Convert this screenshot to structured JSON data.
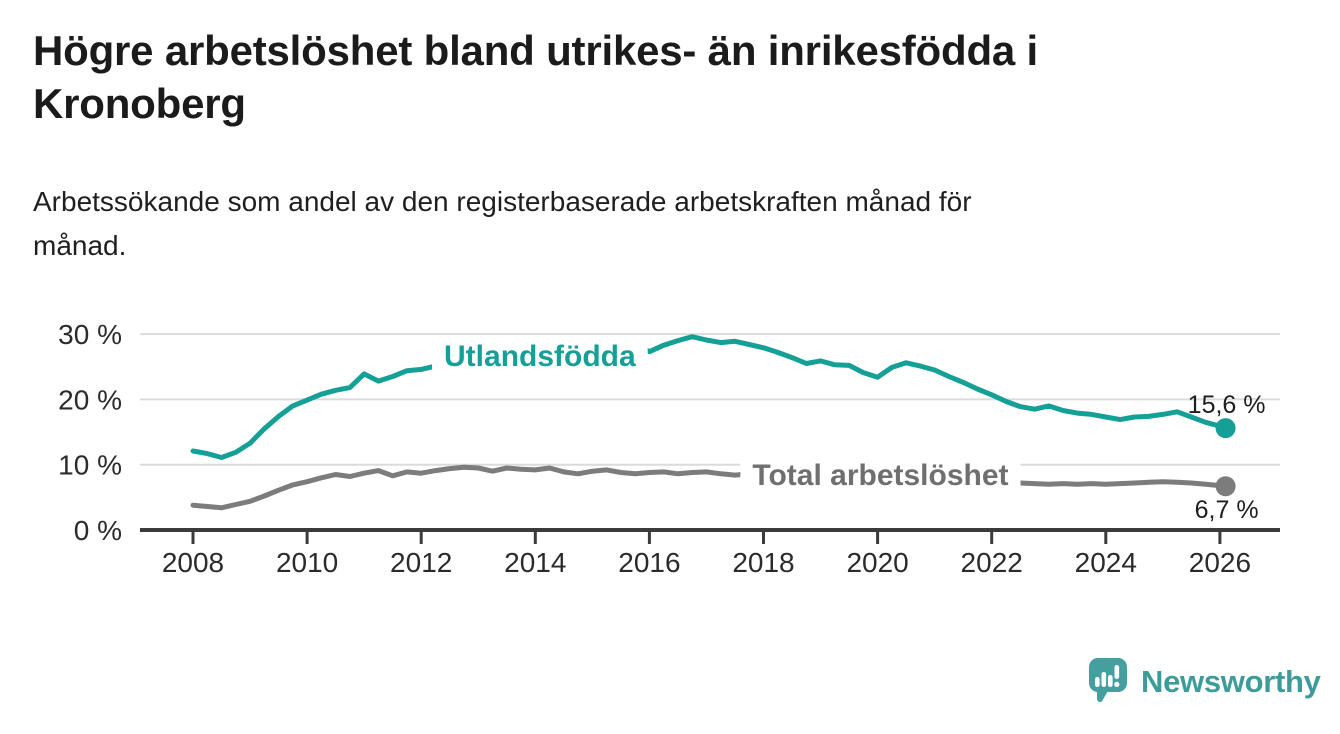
{
  "header": {
    "title_lines": [
      "Högre arbetslöshet bland utrikes- än inrikesfödda i",
      "Kronoberg"
    ],
    "subtitle_lines": [
      "Arbetssökande som andel av den registerbaserade arbetskraften månad för",
      "månad."
    ]
  },
  "branding": {
    "logo_text": "Newsworthy",
    "logo_icon": "speech-bubble-bar-chart-icon",
    "logo_color": "#43A09E"
  },
  "colors": {
    "accent_teal": "#14A096",
    "series_gray": "#7C7C7C",
    "axis": "#3B3B3B",
    "gridline": "#DBDBDB",
    "tick_label": "#2B2B2B",
    "value_label": "#1E1E1E"
  },
  "chart_data": {
    "type": "line",
    "title": "Högre arbetslöshet bland utrikes- än inrikesfödda i Kronoberg",
    "subtitle": "Arbetssökande som andel av den registerbaserade arbetskraften månad för månad.",
    "unit": "%",
    "grid": "horizontal",
    "legend": "inline-labels",
    "xlim": [
      2007.07,
      2027.05
    ],
    "ylim": [
      0,
      31
    ],
    "x_ticks": [
      2008,
      2010,
      2012,
      2014,
      2016,
      2018,
      2020,
      2022,
      2024,
      2026
    ],
    "y_ticks": [
      {
        "value": 0,
        "label": "0 %"
      },
      {
        "value": 10,
        "label": "10 %"
      },
      {
        "value": 20,
        "label": "20 %"
      },
      {
        "value": 30,
        "label": "30 %"
      }
    ],
    "series": [
      {
        "name": "Utlandsfödda",
        "color": "#14A096",
        "x_start": 2008,
        "x_step": 0.25,
        "values": [
          12.1,
          11.7,
          11.1,
          11.9,
          13.3,
          15.5,
          17.4,
          19.0,
          19.9,
          20.8,
          21.4,
          21.8,
          23.9,
          22.8,
          23.5,
          24.4,
          24.6,
          25.1,
          25.4,
          25.6,
          25.9,
          26.2,
          26.4,
          26.7,
          26.9,
          27.2,
          27.4,
          27.7,
          27.9,
          28.1,
          28.3,
          28.5,
          27.3,
          28.3,
          29.0,
          29.6,
          29.1,
          28.7,
          28.9,
          28.4,
          27.9,
          27.2,
          26.4,
          25.5,
          25.9,
          25.3,
          25.2,
          24.1,
          23.4,
          24.9,
          25.6,
          25.1,
          24.5,
          23.5,
          22.6,
          21.6,
          20.7,
          19.7,
          18.9,
          18.5,
          19.0,
          18.3,
          17.9,
          17.7,
          17.3,
          16.9,
          17.3,
          17.4,
          17.7,
          18.1,
          17.3,
          16.5,
          15.9
        ],
        "end_x": 2026.1,
        "end_value": 15.6,
        "end_label": "15,6 %",
        "end_label_position": "above",
        "label_x": 2014.08,
        "label_y": 26.8
      },
      {
        "name": "Total arbetslöshet",
        "color": "#7C7C7C",
        "label_color": "#6F6F6F",
        "x_start": 2008,
        "x_step": 0.25,
        "values": [
          3.8,
          3.6,
          3.4,
          3.9,
          4.4,
          5.2,
          6.1,
          6.9,
          7.4,
          8.0,
          8.5,
          8.2,
          8.7,
          9.1,
          8.3,
          8.9,
          8.7,
          9.1,
          9.4,
          9.6,
          9.5,
          9.0,
          9.5,
          9.3,
          9.2,
          9.5,
          8.9,
          8.6,
          9.0,
          9.2,
          8.8,
          8.6,
          8.8,
          8.9,
          8.6,
          8.8,
          8.9,
          8.6,
          8.4,
          8.6,
          8.5,
          8.3,
          8.1,
          8.0,
          8.0,
          7.9,
          7.8,
          7.9,
          8.2,
          8.8,
          9.0,
          8.7,
          8.4,
          8.1,
          7.8,
          7.6,
          7.4,
          7.2,
          7.2,
          7.1,
          7.0,
          7.1,
          7.0,
          7.1,
          7.0,
          7.1,
          7.2,
          7.3,
          7.4,
          7.3,
          7.2,
          7.0,
          6.8
        ],
        "end_x": 2026.1,
        "end_value": 6.7,
        "end_label": "6,7 %",
        "end_label_position": "below",
        "label_x": 2020.05,
        "label_y": 8.6
      }
    ]
  }
}
